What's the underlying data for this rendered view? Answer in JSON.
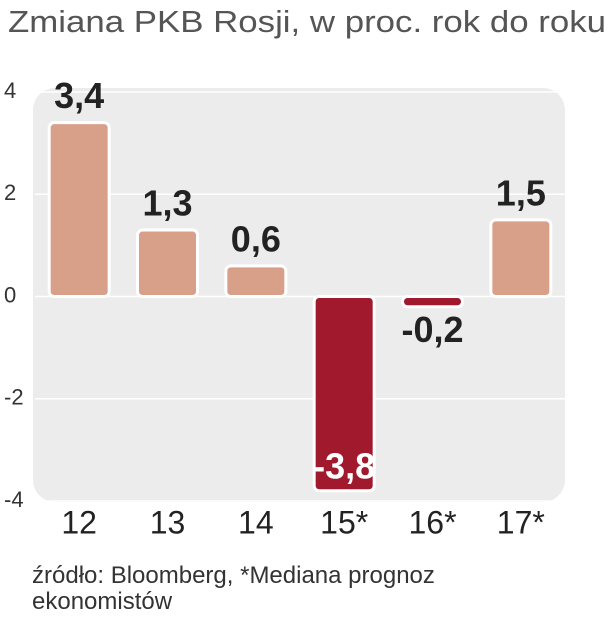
{
  "chart_data": {
    "type": "bar",
    "title": "Zmiana PKB Rosji, w proc. rok do roku",
    "categories": [
      "12",
      "13",
      "14",
      "15*",
      "16*",
      "17*"
    ],
    "values": [
      3.4,
      1.3,
      0.6,
      -3.8,
      -0.2,
      1.5
    ],
    "value_labels": [
      "3,4",
      "1,3",
      "0,6",
      "-3,8",
      "-0,2",
      "1,5"
    ],
    "colors": [
      "#d9a089",
      "#d9a089",
      "#d9a089",
      "#a0192c",
      "#a0192c",
      "#d9a089"
    ],
    "ylim": [
      -4,
      4
    ],
    "yticks": [
      -4,
      -2,
      0,
      2,
      4
    ],
    "grid": true,
    "source": "źródło: Bloomberg, *Mediana prognoz ekonomistów"
  }
}
